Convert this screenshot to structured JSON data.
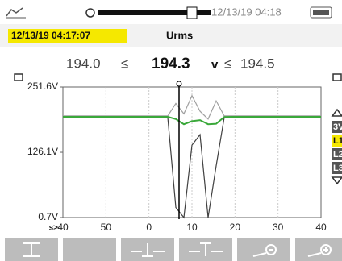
{
  "status_bar": {
    "datetime": "12/13/19 04:18"
  },
  "header": {
    "timestamp": "12/13/19 04:17:07",
    "title": "Urms"
  },
  "readout": {
    "min": "194.0",
    "le1": "≤",
    "value": "194.3",
    "unit": "v",
    "le2": "≤",
    "max": "194.5"
  },
  "chart_data": {
    "type": "line",
    "ylim": [
      0.7,
      251.6
    ],
    "yticks": [
      {
        "value": 251.6,
        "label": "251.6V"
      },
      {
        "value": 126.1,
        "label": "126.1V"
      },
      {
        "value": 0.7,
        "label": "0.7V"
      }
    ],
    "x_unit": "s>",
    "xticks": [
      "40",
      "50",
      "0",
      "10",
      "20",
      "30",
      "40"
    ],
    "grid": true,
    "series": [
      {
        "name": "max",
        "color": "#a0a0a0",
        "values": [
          196,
          196,
          196,
          196,
          196,
          196,
          196,
          196,
          196,
          196,
          196,
          196,
          196,
          196,
          220,
          200,
          235,
          205,
          190,
          225,
          196,
          196,
          196,
          196,
          196,
          196,
          196,
          196,
          196,
          196,
          196,
          196,
          196
        ]
      },
      {
        "name": "min",
        "color": "#404040",
        "values": [
          193,
          193,
          193,
          193,
          193,
          193,
          193,
          193,
          193,
          193,
          193,
          193,
          193,
          193,
          20,
          0.7,
          140,
          160,
          0.7,
          100,
          193,
          193,
          193,
          193,
          193,
          193,
          193,
          193,
          193,
          193,
          193,
          193,
          193
        ]
      },
      {
        "name": "avg",
        "color": "#3aa83a",
        "values": [
          194.3,
          194.3,
          194.3,
          194.3,
          194.3,
          194.3,
          194.3,
          194.3,
          194.3,
          194.3,
          194.3,
          194.3,
          194.3,
          194.3,
          190,
          180,
          186,
          188,
          180,
          181,
          194,
          194.3,
          194.3,
          194.3,
          194.3,
          194.3,
          194.3,
          194.3,
          194.3,
          194.3,
          194.3,
          194.3,
          194.3
        ]
      }
    ]
  },
  "side_tabs": [
    "3V",
    "L1",
    "L2",
    "L3"
  ]
}
